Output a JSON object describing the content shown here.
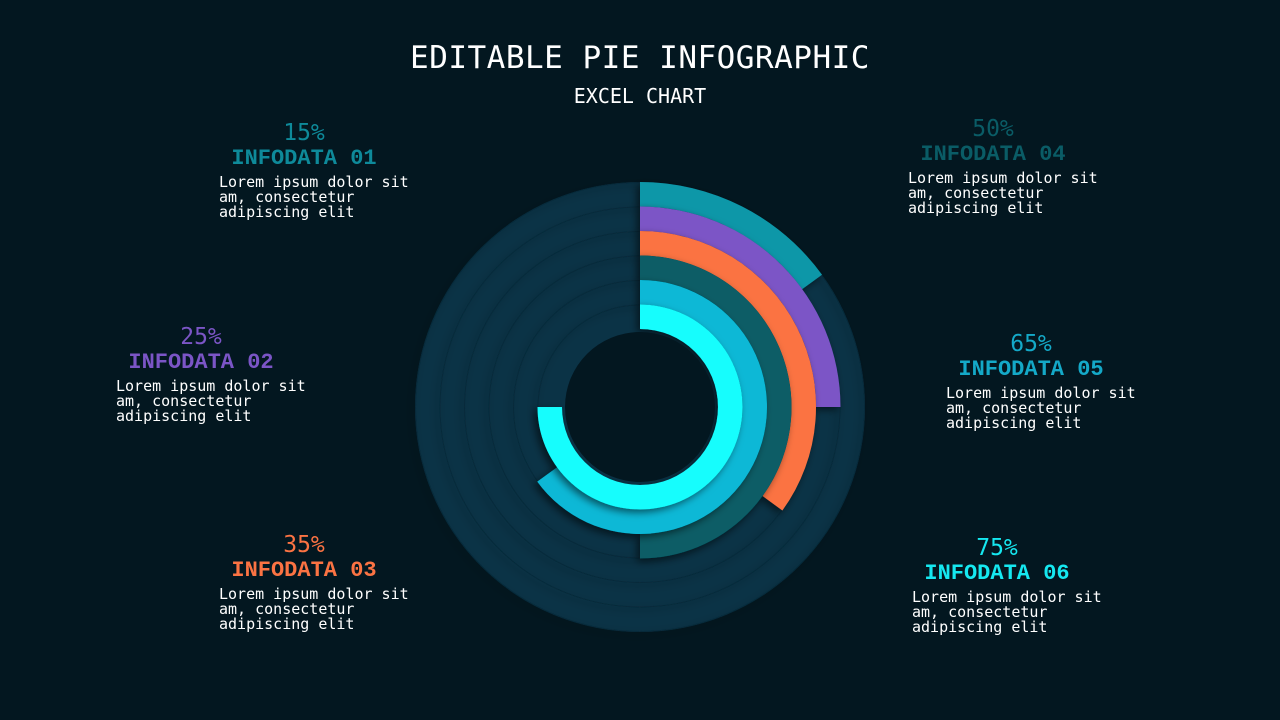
{
  "title": "EDITABLE PIE INFOGRAPHIC",
  "subtitle": "EXCEL CHART",
  "chart_data": {
    "type": "radial-bar",
    "series": [
      {
        "name": "INFODATA 01",
        "value": 15,
        "label": "15%",
        "color": "#0e97a8"
      },
      {
        "name": "INFODATA 02",
        "value": 25,
        "label": "25%",
        "color": "#7b55c6"
      },
      {
        "name": "INFODATA 03",
        "value": 35,
        "label": "35%",
        "color": "#fb7343"
      },
      {
        "name": "INFODATA 04",
        "value": 50,
        "label": "50%",
        "color": "#075d66"
      },
      {
        "name": "INFODATA 05",
        "value": 65,
        "label": "65%",
        "color": "#08b8d6"
      },
      {
        "name": "INFODATA 06",
        "value": 75,
        "label": "75%",
        "color": "#15fdfd"
      }
    ],
    "track_color": "#0b3346",
    "max": 100
  },
  "items": [
    {
      "pct": "15%",
      "name": "INFODATA 01",
      "desc": "Lorem ipsum dolor sit\nam, consectetur\nadipiscing elit",
      "color": "#0e8a9a"
    },
    {
      "pct": "25%",
      "name": "INFODATA 02",
      "desc": "Lorem ipsum dolor sit\nam, consectetur\nadipiscing elit",
      "color": "#7b55c6"
    },
    {
      "pct": "35%",
      "name": "INFODATA 03",
      "desc": "Lorem ipsum dolor sit\nam, consectetur\nadipiscing elit",
      "color": "#fb7343"
    },
    {
      "pct": "50%",
      "name": "INFODATA 04",
      "desc": "Lorem ipsum dolor sit\nam, consectetur\nadipiscing elit",
      "color": "#0a5c66"
    },
    {
      "pct": "65%",
      "name": "INFODATA 05",
      "desc": "Lorem ipsum dolor sit\nam, consectetur\nadipiscing elit",
      "color": "#14a9c8"
    },
    {
      "pct": "75%",
      "name": "INFODATA 06",
      "desc": "Lorem ipsum dolor sit\nam, consectetur\nadipiscing elit",
      "color": "#15e8f0"
    }
  ]
}
